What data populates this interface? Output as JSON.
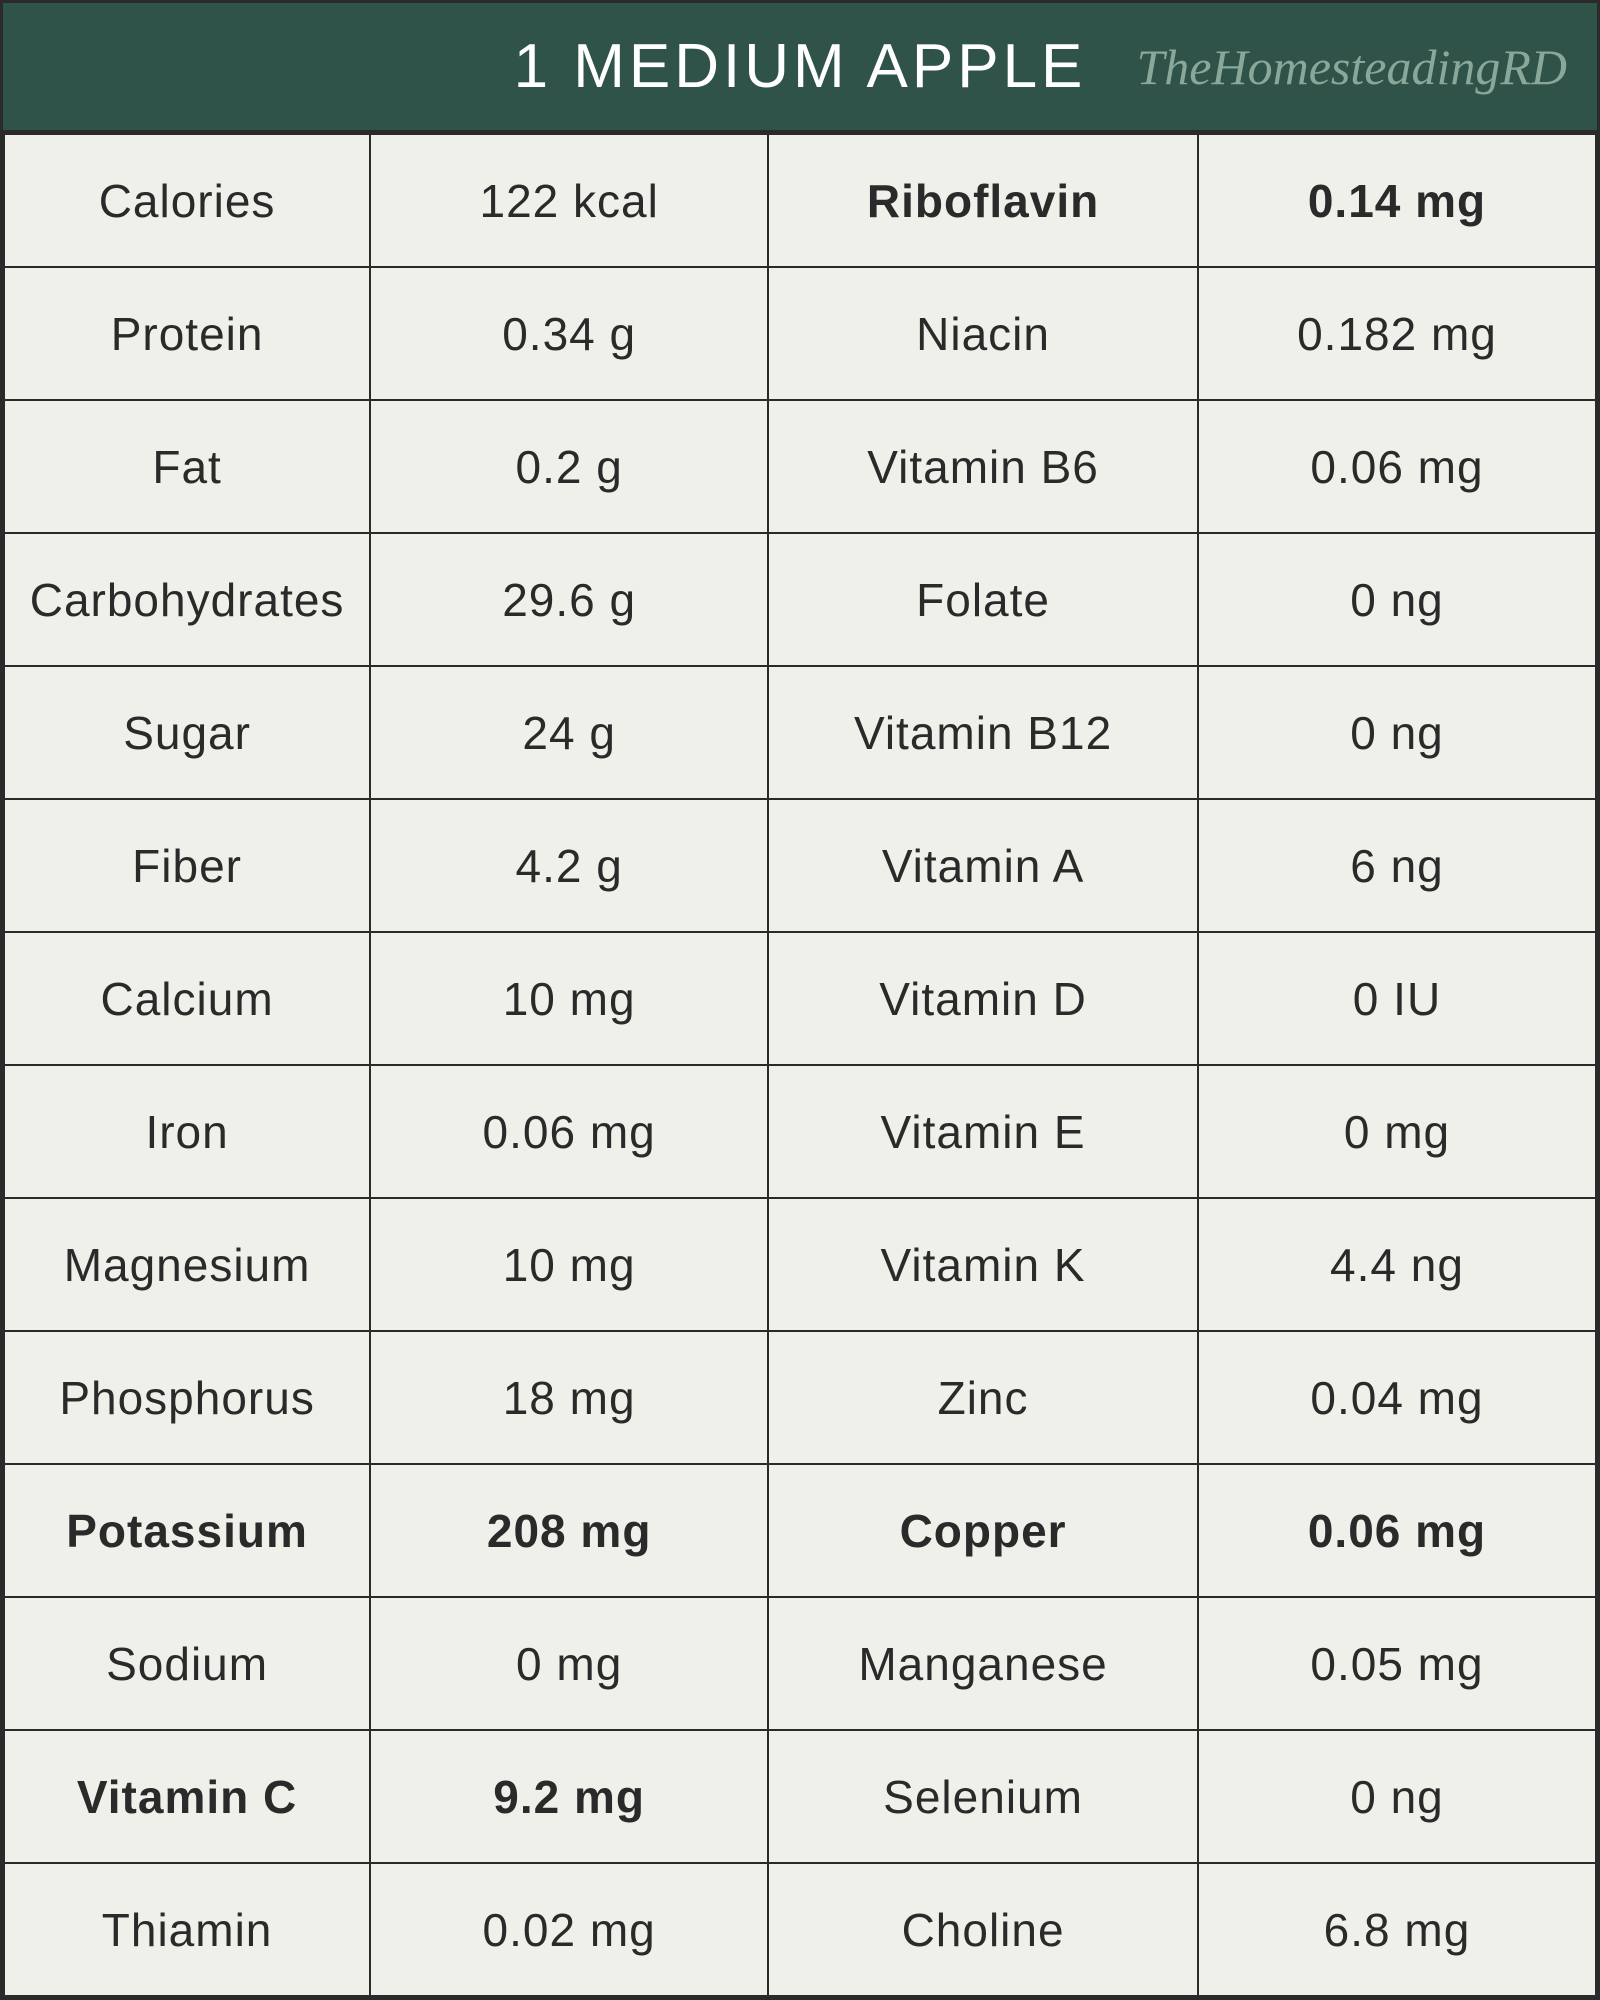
{
  "header": {
    "title": "1 MEDIUM APPLE",
    "brand": "TheHomesteadingRD"
  },
  "table": {
    "background_color": "#f0f0ea",
    "header_color": "#2f5249",
    "border_color": "#2a2a2a",
    "text_color": "#2a2a2a",
    "brand_color": "#8aa89a",
    "font_size_normal": 46,
    "font_size_title": 62,
    "font_weight_normal": 200,
    "font_weight_bold": 700,
    "rows": [
      {
        "left_label": "Calories",
        "left_value": "122 kcal",
        "left_bold": false,
        "right_label": "Riboflavin",
        "right_value": "0.14 mg",
        "right_bold": true
      },
      {
        "left_label": "Protein",
        "left_value": "0.34 g",
        "left_bold": false,
        "right_label": "Niacin",
        "right_value": "0.182 mg",
        "right_bold": false
      },
      {
        "left_label": "Fat",
        "left_value": "0.2 g",
        "left_bold": false,
        "right_label": "Vitamin B6",
        "right_value": "0.06 mg",
        "right_bold": false
      },
      {
        "left_label": "Carbohydrates",
        "left_value": "29.6 g",
        "left_bold": false,
        "right_label": "Folate",
        "right_value": "0 ng",
        "right_bold": false
      },
      {
        "left_label": "Sugar",
        "left_value": "24 g",
        "left_bold": false,
        "right_label": "Vitamin B12",
        "right_value": "0 ng",
        "right_bold": false
      },
      {
        "left_label": "Fiber",
        "left_value": "4.2 g",
        "left_bold": false,
        "right_label": "Vitamin A",
        "right_value": "6 ng",
        "right_bold": false
      },
      {
        "left_label": "Calcium",
        "left_value": "10 mg",
        "left_bold": false,
        "right_label": "Vitamin D",
        "right_value": "0 IU",
        "right_bold": false
      },
      {
        "left_label": "Iron",
        "left_value": "0.06 mg",
        "left_bold": false,
        "right_label": "Vitamin E",
        "right_value": "0 mg",
        "right_bold": false
      },
      {
        "left_label": "Magnesium",
        "left_value": "10 mg",
        "left_bold": false,
        "right_label": "Vitamin K",
        "right_value": "4.4 ng",
        "right_bold": false
      },
      {
        "left_label": "Phosphorus",
        "left_value": "18 mg",
        "left_bold": false,
        "right_label": "Zinc",
        "right_value": "0.04 mg",
        "right_bold": false
      },
      {
        "left_label": "Potassium",
        "left_value": "208 mg",
        "left_bold": true,
        "right_label": "Copper",
        "right_value": "0.06 mg",
        "right_bold": true
      },
      {
        "left_label": "Sodium",
        "left_value": "0 mg",
        "left_bold": false,
        "right_label": "Manganese",
        "right_value": "0.05 mg",
        "right_bold": false
      },
      {
        "left_label": "Vitamin C",
        "left_value": "9.2 mg",
        "left_bold": true,
        "right_label": "Selenium",
        "right_value": "0 ng",
        "right_bold": false
      },
      {
        "left_label": "Thiamin",
        "left_value": "0.02 mg",
        "left_bold": false,
        "right_label": "Choline",
        "right_value": "6.8 mg",
        "right_bold": false
      }
    ]
  }
}
